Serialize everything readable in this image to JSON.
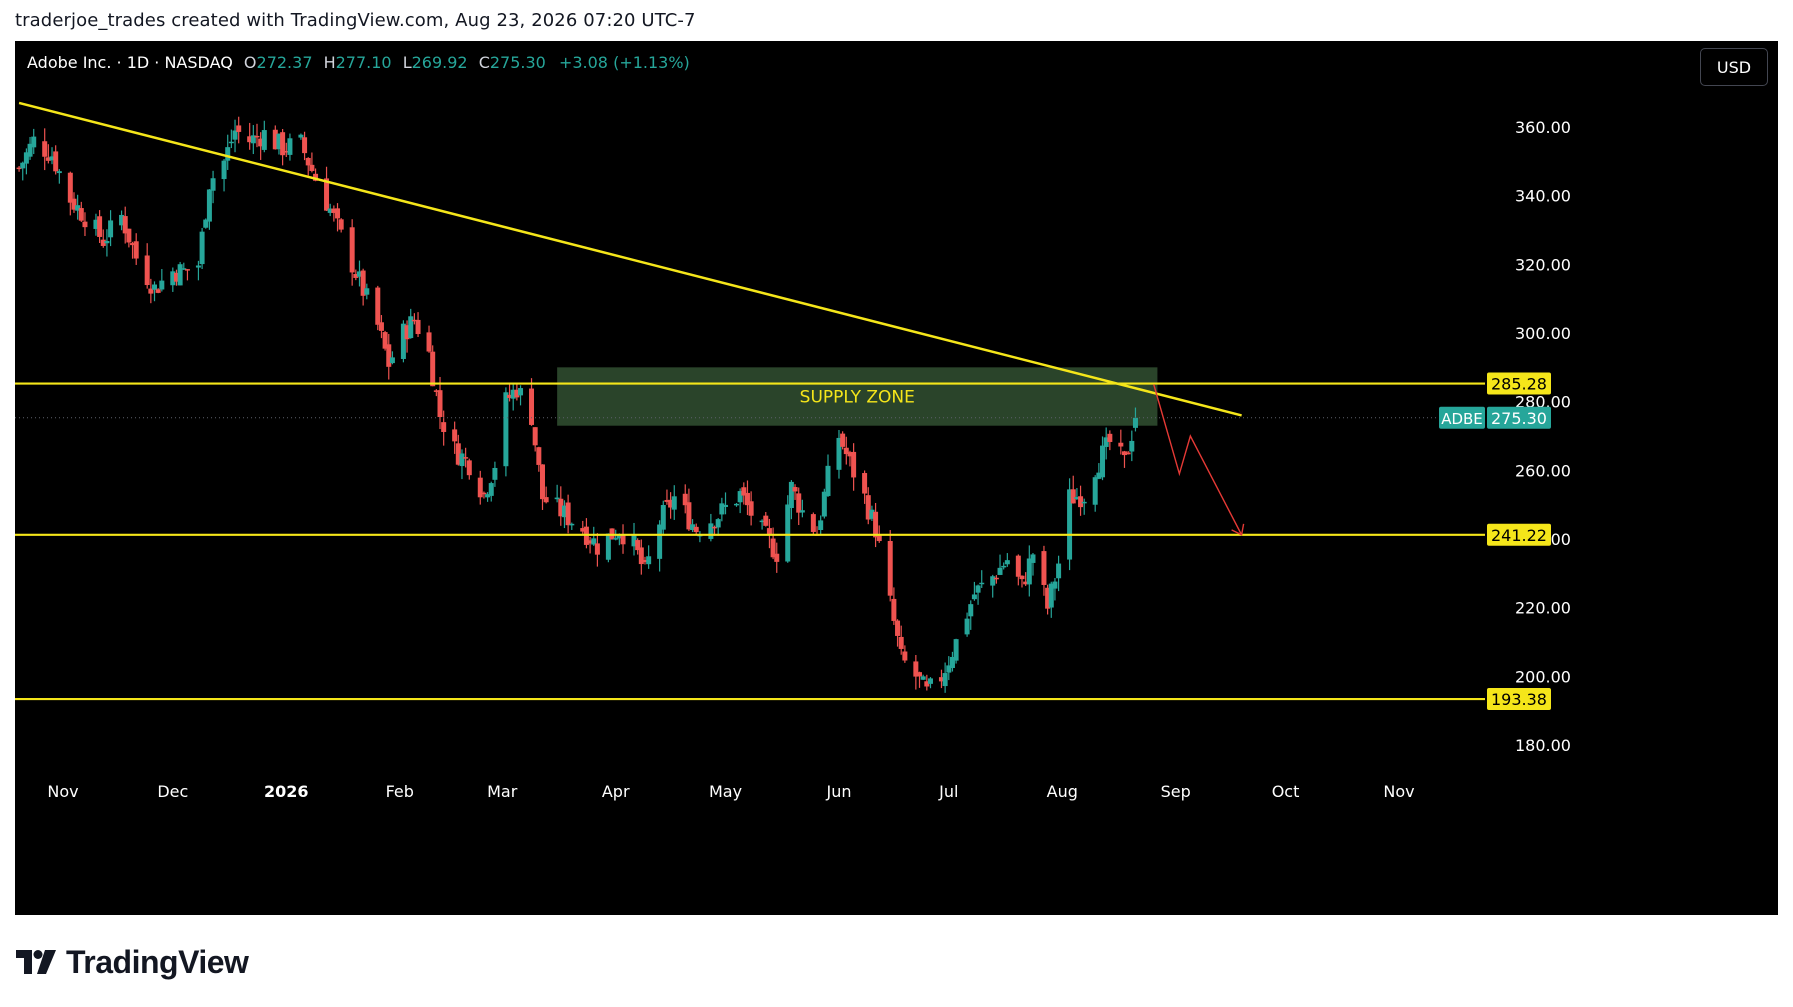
{
  "attribution": "traderjoe_trades created with TradingView.com, Aug 23, 2026 07:20 UTC-7",
  "legend": {
    "symbol_line": "Adobe Inc. · 1D · NASDAQ",
    "o_label": "O",
    "o_value": "272.37",
    "h_label": "H",
    "h_value": "277.10",
    "l_label": "L",
    "l_value": "269.92",
    "c_label": "C",
    "c_value": "275.30",
    "change": "+3.08 (+1.13%)"
  },
  "currency_button": "USD",
  "logo_text": "TradingView",
  "colors": {
    "background": "#000000",
    "up": "#26a69a",
    "down": "#ef5350",
    "level_line": "#f5e61a",
    "zone_fill": "#2e4a2e",
    "axis_text": "#ffffff",
    "projection": "#e53935",
    "last_price_tag": "#26a69a"
  },
  "chart_data": {
    "type": "candlestick",
    "symbol": "ADBE",
    "interval": "1D",
    "exchange": "NASDAQ",
    "ylim": [
      174,
      376
    ],
    "y_ticks": [
      "360.00",
      "340.00",
      "320.00",
      "300.00",
      "280.00",
      "260.00",
      "240.00",
      "220.00",
      "200.00",
      "180.00"
    ],
    "x_ticks": [
      "Nov",
      "Dec",
      "2026",
      "Feb",
      "Mar",
      "Apr",
      "May",
      "Jun",
      "Jul",
      "Aug",
      "Sep",
      "Oct",
      "Nov"
    ],
    "x_tick_dates": [
      "2025-11-01",
      "2025-12-01",
      "2026-01-01",
      "2026-02-01",
      "2026-03-01",
      "2026-04-01",
      "2026-05-01",
      "2026-06-01",
      "2026-07-01",
      "2026-08-01",
      "2026-09-01",
      "2026-10-01",
      "2026-11-01"
    ],
    "horizontal_levels": [
      {
        "value": 285.28,
        "label": "285.28"
      },
      {
        "value": 241.22,
        "label": "241.22"
      },
      {
        "value": 193.38,
        "label": "193.38"
      }
    ],
    "last_price": {
      "symbol": "ADBE",
      "value": 275.3,
      "label": "275.30"
    },
    "supply_zone": {
      "label": "SUPPLY ZONE",
      "x_start": "2026-03-16",
      "x_end": "2026-08-27",
      "y_low": 273,
      "y_high": 290
    },
    "trendline": {
      "start": {
        "x": "2025-10-20",
        "y": 367
      },
      "end": {
        "x": "2026-09-19",
        "y": 276
      }
    },
    "projection_path": [
      {
        "x": "2026-08-26",
        "y": 285
      },
      {
        "x": "2026-09-02",
        "y": 259
      },
      {
        "x": "2026-09-05",
        "y": 270
      },
      {
        "x": "2026-09-19",
        "y": 241.2
      }
    ],
    "anchors": [
      [
        "2025-10-20",
        348
      ],
      [
        "2025-10-24",
        356
      ],
      [
        "2025-10-29",
        352
      ],
      [
        "2025-11-03",
        339
      ],
      [
        "2025-11-07",
        334
      ],
      [
        "2025-11-12",
        327
      ],
      [
        "2025-11-17",
        334
      ],
      [
        "2025-11-21",
        322
      ],
      [
        "2025-11-26",
        313
      ],
      [
        "2025-12-01",
        318
      ],
      [
        "2025-12-04",
        318
      ],
      [
        "2025-12-08",
        320
      ],
      [
        "2025-12-11",
        344
      ],
      [
        "2025-12-15",
        350
      ],
      [
        "2025-12-18",
        359
      ],
      [
        "2025-12-22",
        356
      ],
      [
        "2025-12-26",
        358
      ],
      [
        "2025-12-31",
        354
      ],
      [
        "2026-01-05",
        355
      ],
      [
        "2026-01-09",
        345
      ],
      [
        "2026-01-13",
        336
      ],
      [
        "2026-01-16",
        328
      ],
      [
        "2026-01-21",
        315
      ],
      [
        "2026-01-26",
        302
      ],
      [
        "2026-01-29",
        291
      ],
      [
        "2026-02-02",
        300
      ],
      [
        "2026-02-05",
        304
      ],
      [
        "2026-02-09",
        294
      ],
      [
        "2026-02-12",
        276
      ],
      [
        "2026-02-16",
        266
      ],
      [
        "2026-02-20",
        262
      ],
      [
        "2026-02-24",
        253
      ],
      [
        "2026-02-27",
        262
      ],
      [
        "2026-03-02",
        280
      ],
      [
        "2026-03-05",
        284
      ],
      [
        "2026-03-09",
        276
      ],
      [
        "2026-03-12",
        252
      ],
      [
        "2026-03-17",
        248
      ],
      [
        "2026-03-23",
        243
      ],
      [
        "2026-03-27",
        238
      ],
      [
        "2026-04-02",
        243
      ],
      [
        "2026-04-06",
        238
      ],
      [
        "2026-04-09",
        230
      ],
      [
        "2026-04-13",
        245
      ],
      [
        "2026-04-17",
        252
      ],
      [
        "2026-04-23",
        243
      ],
      [
        "2026-04-29",
        247
      ],
      [
        "2026-05-05",
        253
      ],
      [
        "2026-05-11",
        242
      ],
      [
        "2026-05-15",
        236
      ],
      [
        "2026-05-19",
        255
      ],
      [
        "2026-05-22",
        248
      ],
      [
        "2026-05-26",
        242
      ],
      [
        "2026-05-29",
        258
      ],
      [
        "2026-06-01",
        270
      ],
      [
        "2026-06-04",
        262
      ],
      [
        "2026-06-08",
        252
      ],
      [
        "2026-06-11",
        243
      ],
      [
        "2026-06-15",
        221
      ],
      [
        "2026-06-18",
        205
      ],
      [
        "2026-06-22",
        200
      ],
      [
        "2026-06-25",
        195
      ],
      [
        "2026-06-29",
        200
      ],
      [
        "2026-07-03",
        210
      ],
      [
        "2026-07-08",
        224
      ],
      [
        "2026-07-13",
        229
      ],
      [
        "2026-07-17",
        234
      ],
      [
        "2026-07-21",
        226
      ],
      [
        "2026-07-24",
        236
      ],
      [
        "2026-07-28",
        220
      ],
      [
        "2026-07-31",
        233
      ],
      [
        "2026-08-03",
        252
      ],
      [
        "2026-08-07",
        253
      ],
      [
        "2026-08-10",
        261
      ],
      [
        "2026-08-14",
        268
      ],
      [
        "2026-08-18",
        262
      ],
      [
        "2026-08-21",
        275.3
      ]
    ]
  }
}
